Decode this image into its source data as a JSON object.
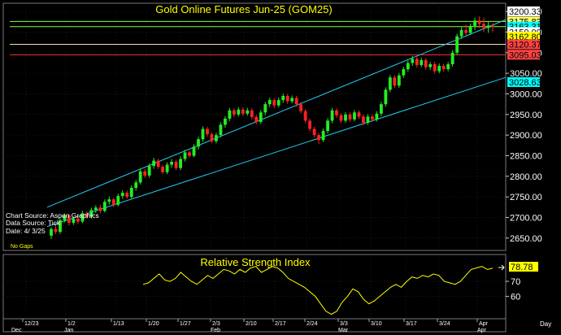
{
  "chart_data": [
    {
      "type": "candlestick",
      "title": "Gold Online Futures Jun-25 (GOM25)",
      "ylim": [
        2620,
        3220
      ],
      "y_ticks": [
        2650,
        2700,
        2750,
        2800,
        2850,
        2900,
        2950,
        3000,
        3050,
        3100,
        3150,
        3200
      ],
      "price_labels": [
        {
          "value": "3200.33",
          "y": 3200.33,
          "bg": "#ffffff",
          "fg": "#000000"
        },
        {
          "value": "3175.83",
          "y": 3175.83,
          "bg": "#ffff66",
          "fg": "#000000"
        },
        {
          "value": "3163.31",
          "y": 3163.31,
          "bg": "#00ffff",
          "fg": "#000000"
        },
        {
          "value": "3150.00",
          "y": 3150.0,
          "bg": "#ffffff",
          "fg": "#000000"
        },
        {
          "value": "3162.80",
          "y": 3139.0,
          "bg": "#ffff00",
          "fg": "#000000"
        },
        {
          "value": "3120.37",
          "y": 3120.37,
          "bg": "#ff4444",
          "fg": "#000000"
        },
        {
          "value": "3095.03",
          "y": 3095.03,
          "bg": "#ff4444",
          "fg": "#000000"
        },
        {
          "value": "3028.63",
          "y": 3028.63,
          "bg": "#00ffff",
          "fg": "#000000"
        }
      ],
      "hlines": [
        {
          "y": 3175.83,
          "color": "#88ff44"
        },
        {
          "y": 3163.31,
          "color": "#88ff44"
        },
        {
          "y": 3120.37,
          "color": "#ffddaa"
        },
        {
          "y": 3095.03,
          "color": "#ff3333"
        }
      ],
      "channel": [
        {
          "x0": 0,
          "y0": 2725,
          "x1": 128,
          "y1": 3180
        },
        {
          "x0": 2,
          "y0": 2678,
          "x1": 128,
          "y1": 3040
        }
      ],
      "candles": [
        [
          2656,
          2672,
          2648,
          2676
        ],
        [
          2672,
          2665,
          2660,
          2681
        ],
        [
          2665,
          2693,
          2660,
          2698
        ],
        [
          2693,
          2705,
          2688,
          2710
        ],
        [
          2705,
          2687,
          2680,
          2709
        ],
        [
          2687,
          2697,
          2682,
          2702
        ],
        [
          2697,
          2690,
          2685,
          2704
        ],
        [
          2690,
          2710,
          2686,
          2716
        ],
        [
          2710,
          2702,
          2697,
          2715
        ],
        [
          2702,
          2718,
          2697,
          2724
        ],
        [
          2718,
          2724,
          2711,
          2730
        ],
        [
          2724,
          2716,
          2710,
          2731
        ],
        [
          2716,
          2738,
          2712,
          2744
        ],
        [
          2738,
          2744,
          2731,
          2751
        ],
        [
          2744,
          2731,
          2725,
          2748
        ],
        [
          2731,
          2752,
          2727,
          2758
        ],
        [
          2752,
          2760,
          2745,
          2766
        ],
        [
          2760,
          2750,
          2745,
          2765
        ],
        [
          2750,
          2772,
          2746,
          2778
        ],
        [
          2772,
          2785,
          2765,
          2791
        ],
        [
          2785,
          2812,
          2780,
          2818
        ],
        [
          2812,
          2802,
          2796,
          2818
        ],
        [
          2802,
          2825,
          2797,
          2831
        ],
        [
          2825,
          2838,
          2818,
          2845
        ],
        [
          2838,
          2823,
          2818,
          2843
        ],
        [
          2823,
          2810,
          2805,
          2828
        ],
        [
          2810,
          2828,
          2805,
          2834
        ],
        [
          2828,
          2835,
          2821,
          2842
        ],
        [
          2835,
          2820,
          2815,
          2840
        ],
        [
          2820,
          2842,
          2815,
          2848
        ],
        [
          2842,
          2858,
          2836,
          2864
        ],
        [
          2858,
          2850,
          2845,
          2863
        ],
        [
          2850,
          2872,
          2846,
          2878
        ],
        [
          2872,
          2890,
          2865,
          2896
        ],
        [
          2890,
          2915,
          2884,
          2921
        ],
        [
          2915,
          2902,
          2896,
          2920
        ],
        [
          2902,
          2885,
          2880,
          2907
        ],
        [
          2885,
          2900,
          2880,
          2906
        ],
        [
          2900,
          2925,
          2895,
          2931
        ],
        [
          2925,
          2940,
          2918,
          2946
        ],
        [
          2940,
          2960,
          2934,
          2966
        ],
        [
          2960,
          2950,
          2944,
          2965
        ],
        [
          2950,
          2962,
          2945,
          2968
        ],
        [
          2962,
          2952,
          2946,
          2967
        ],
        [
          2952,
          2960,
          2947,
          2966
        ],
        [
          2960,
          2944,
          2938,
          2965
        ],
        [
          2944,
          2932,
          2926,
          2949
        ],
        [
          2932,
          2955,
          2927,
          2961
        ],
        [
          2955,
          2975,
          2948,
          2981
        ],
        [
          2975,
          2985,
          2968,
          2991
        ],
        [
          2985,
          2972,
          2966,
          2990
        ],
        [
          2972,
          2985,
          2967,
          2991
        ],
        [
          2985,
          2995,
          2978,
          3001
        ],
        [
          2995,
          2982,
          2976,
          3000
        ],
        [
          2982,
          2990,
          2977,
          2996
        ],
        [
          2990,
          2975,
          2969,
          2995
        ],
        [
          2975,
          2958,
          2952,
          2980
        ],
        [
          2958,
          2935,
          2929,
          2963
        ],
        [
          2935,
          2915,
          2909,
          2940
        ],
        [
          2915,
          2900,
          2894,
          2920
        ],
        [
          2900,
          2888,
          2878,
          2905
        ],
        [
          2888,
          2910,
          2883,
          2916
        ],
        [
          2910,
          2935,
          2904,
          2941
        ],
        [
          2935,
          2960,
          2929,
          2966
        ],
        [
          2960,
          2948,
          2942,
          2965
        ],
        [
          2948,
          2935,
          2929,
          2953
        ],
        [
          2935,
          2950,
          2930,
          2956
        ],
        [
          2950,
          2938,
          2932,
          2955
        ],
        [
          2938,
          2955,
          2933,
          2961
        ],
        [
          2955,
          2945,
          2939,
          2960
        ],
        [
          2945,
          2930,
          2924,
          2950
        ],
        [
          2930,
          2945,
          2925,
          2951
        ],
        [
          2945,
          2938,
          2932,
          2950
        ],
        [
          2938,
          2952,
          2933,
          2958
        ],
        [
          2952,
          2975,
          2946,
          2981
        ],
        [
          2975,
          3010,
          2969,
          3016
        ],
        [
          3010,
          3040,
          3004,
          3046
        ],
        [
          3040,
          3020,
          3014,
          3045
        ],
        [
          3020,
          3045,
          3015,
          3051
        ],
        [
          3045,
          3060,
          3039,
          3066
        ],
        [
          3060,
          3075,
          3054,
          3081
        ],
        [
          3075,
          3085,
          3068,
          3092
        ],
        [
          3085,
          3070,
          3064,
          3090
        ],
        [
          3070,
          3082,
          3065,
          3088
        ],
        [
          3082,
          3065,
          3059,
          3087
        ],
        [
          3065,
          3072,
          3058,
          3078
        ],
        [
          3072,
          3055,
          3049,
          3078
        ],
        [
          3055,
          3068,
          3050,
          3074
        ],
        [
          3068,
          3060,
          3054,
          3073
        ],
        [
          3060,
          3072,
          3055,
          3078
        ],
        [
          3072,
          3100,
          3066,
          3106
        ],
        [
          3100,
          3140,
          3094,
          3146
        ],
        [
          3140,
          3155,
          3134,
          3162
        ],
        [
          3155,
          3148,
          3142,
          3168
        ],
        [
          3148,
          3165,
          3143,
          3171
        ],
        [
          3165,
          3178,
          3155,
          3185
        ],
        [
          3178,
          3170,
          3160,
          3188
        ],
        [
          3170,
          3160,
          3150,
          3185
        ],
        [
          3160,
          3166,
          3148,
          3176
        ],
        [
          3166,
          3162.8,
          3150,
          3172
        ]
      ],
      "x_labels": [
        "12/23",
        "1/2",
        "1/13",
        "1/20",
        "1/27",
        "2/3",
        "2/10",
        "2/17",
        "2/24",
        "3/3",
        "3/10",
        "3/17",
        "3/24",
        "Apr"
      ],
      "month_labels": [
        "Dec",
        "Jan",
        "Feb",
        "Mar",
        "Apr"
      ],
      "x_unit_label": "Day",
      "info": {
        "source": "Chart Source: Aspen Graphics",
        "data_source": "Data Source: Tick",
        "date": "Date:   4/  3/25",
        "note": "No Gaps"
      }
    },
    {
      "type": "line",
      "title": "Relative Strength Index",
      "ylim": [
        45,
        88
      ],
      "y_ticks": [
        60,
        70
      ],
      "last_value": "78.78",
      "values": [
        68,
        69,
        72,
        75,
        71,
        70,
        72,
        76,
        73,
        70,
        68,
        71,
        74,
        72,
        75,
        78,
        77,
        75,
        78,
        76,
        79,
        80,
        76,
        78,
        80,
        79,
        76,
        72,
        70,
        68,
        66,
        63,
        60,
        55,
        50,
        48,
        50,
        56,
        60,
        65,
        63,
        58,
        55,
        57,
        60,
        63,
        66,
        68,
        66,
        70,
        73,
        72,
        74,
        73,
        75,
        74,
        70,
        69,
        68,
        70,
        74,
        78,
        79,
        80,
        78,
        78.78
      ]
    }
  ]
}
